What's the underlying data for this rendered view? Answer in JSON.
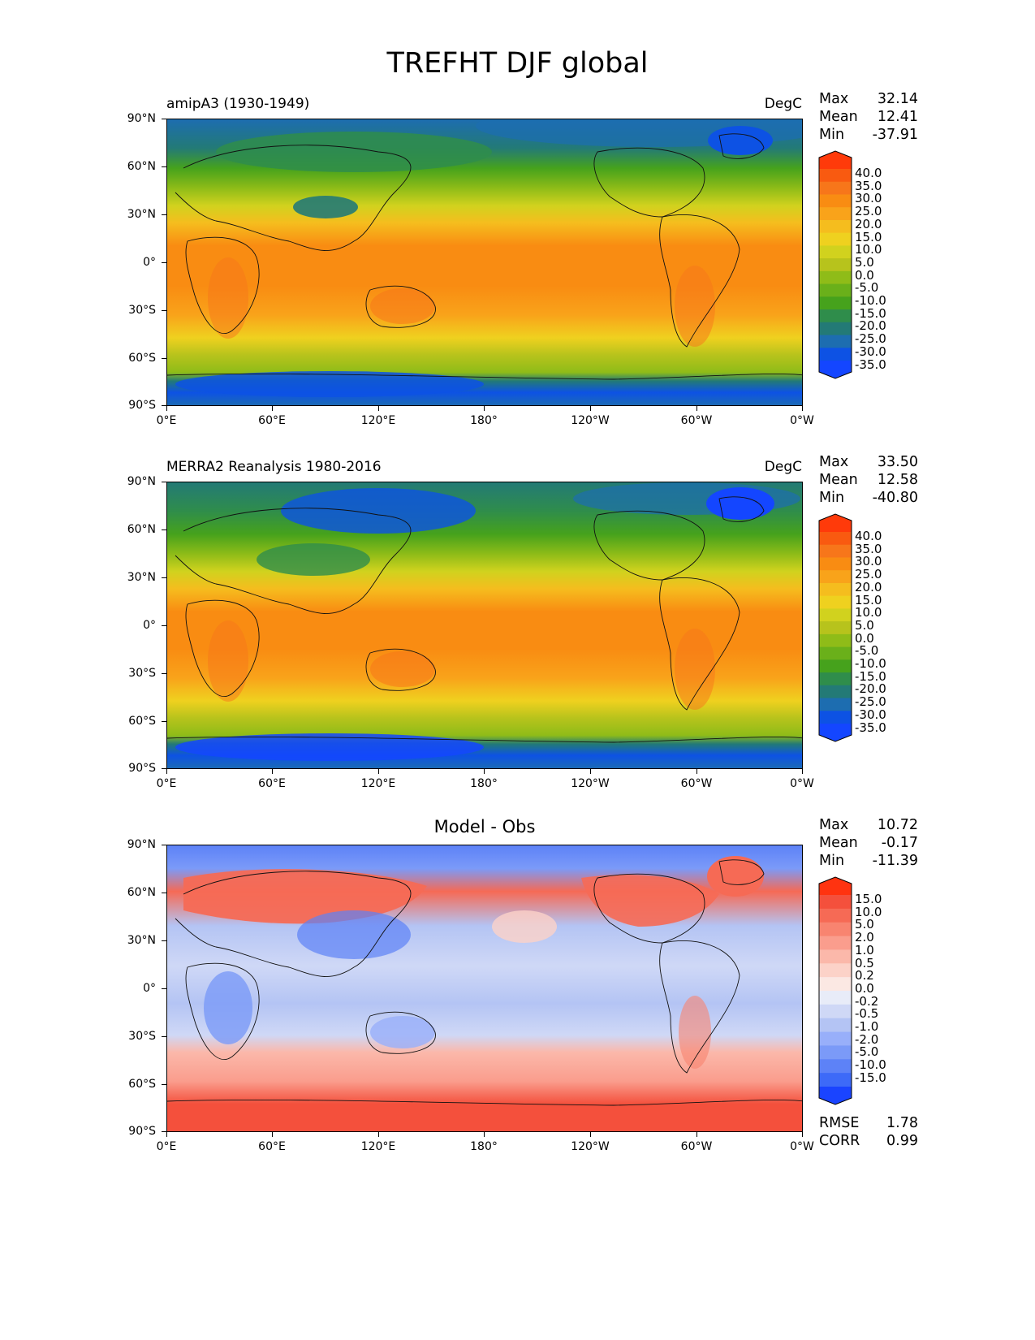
{
  "figure_title": "TREFHT DJF global",
  "x_ticks": [
    "0°E",
    "60°E",
    "120°E",
    "180°",
    "120°W",
    "60°W",
    "0°W"
  ],
  "y_ticks": [
    "90°N",
    "60°N",
    "30°N",
    "0°",
    "30°S",
    "60°S",
    "90°S"
  ],
  "chart_data": [
    {
      "type": "heatmap",
      "title": "amipA3 (1930-1949)",
      "units": "DegC",
      "stats": {
        "max_label": "Max",
        "max": "32.14",
        "mean_label": "Mean",
        "mean": "12.41",
        "min_label": "Min",
        "min": "-37.91"
      },
      "colorbar": {
        "labels": [
          "40.0",
          "35.0",
          "30.0",
          "25.0",
          "20.0",
          "15.0",
          "10.0",
          "5.0",
          "0.0",
          "-5.0",
          "-10.0",
          "-15.0",
          "-20.0",
          "-25.0",
          "-30.0",
          "-35.0"
        ],
        "colors": [
          "#ff3a0a",
          "#f95a10",
          "#f7761a",
          "#f98c12",
          "#f9a31a",
          "#f5bd1e",
          "#efd11f",
          "#d1d21e",
          "#b7c31c",
          "#8fbc18",
          "#6ab01a",
          "#46a21c",
          "#2f8d4b",
          "#237a76",
          "#1d6db0",
          "#0d52e4",
          "#1446ff"
        ]
      },
      "xlim": [
        0,
        360
      ],
      "ylim": [
        -90,
        90
      ]
    },
    {
      "type": "heatmap",
      "title": "MERRA2 Reanalysis 1980-2016",
      "units": "DegC",
      "stats": {
        "max_label": "Max",
        "max": "33.50",
        "mean_label": "Mean",
        "mean": "12.58",
        "min_label": "Min",
        "min": "-40.80"
      },
      "colorbar": {
        "labels": [
          "40.0",
          "35.0",
          "30.0",
          "25.0",
          "20.0",
          "15.0",
          "10.0",
          "5.0",
          "0.0",
          "-5.0",
          "-10.0",
          "-15.0",
          "-20.0",
          "-25.0",
          "-30.0",
          "-35.0"
        ],
        "colors": [
          "#ff3a0a",
          "#f95a10",
          "#f7761a",
          "#f98c12",
          "#f9a31a",
          "#f5bd1e",
          "#efd11f",
          "#d1d21e",
          "#b7c31c",
          "#8fbc18",
          "#6ab01a",
          "#46a21c",
          "#2f8d4b",
          "#237a76",
          "#1d6db0",
          "#0d52e4",
          "#1446ff"
        ]
      },
      "xlim": [
        0,
        360
      ],
      "ylim": [
        -90,
        90
      ]
    },
    {
      "type": "heatmap",
      "title": "Model - Obs",
      "stats": {
        "max_label": "Max",
        "max": "10.72",
        "mean_label": "Mean",
        "mean": "-0.17",
        "min_label": "Min",
        "min": "-11.39"
      },
      "colorbar": {
        "labels": [
          "15.0",
          "10.0",
          "5.0",
          "2.0",
          "1.0",
          "0.5",
          "0.2",
          "0.0",
          "-0.2",
          "-0.5",
          "-1.0",
          "-2.0",
          "-5.0",
          "-10.0",
          "-15.0"
        ],
        "colors": [
          "#ff3310",
          "#f4503c",
          "#f66a55",
          "#f88470",
          "#fa9d8d",
          "#fbb8aa",
          "#fcd2c8",
          "#fbe8e3",
          "#e8ecf8",
          "#cfd8f6",
          "#b4c4f4",
          "#98affa",
          "#7b9af8",
          "#5d82f7",
          "#3d6af8",
          "#1a44ff"
        ]
      },
      "rmse_label": "RMSE",
      "rmse": "1.78",
      "corr_label": "CORR",
      "corr": "0.99",
      "xlim": [
        0,
        360
      ],
      "ylim": [
        -90,
        90
      ]
    }
  ]
}
